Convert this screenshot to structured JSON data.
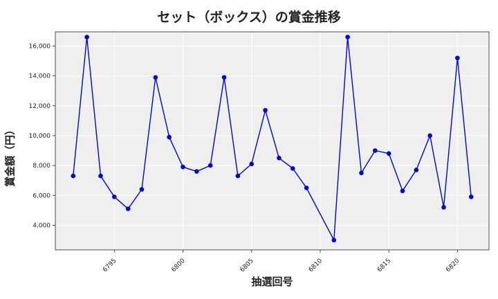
{
  "chart_data": {
    "type": "line",
    "title": "セット（ボックス）の賞金推移",
    "xlabel": "抽選回号",
    "ylabel": "賞金額（円）",
    "xlim": [
      6790.7,
      6822.3
    ],
    "ylim": [
      2350,
      16950
    ],
    "x_ticks": [
      6795,
      6800,
      6805,
      6810,
      6815,
      6820
    ],
    "y_ticks": [
      4000,
      6000,
      8000,
      10000,
      12000,
      14000,
      16000
    ],
    "y_tick_labels": [
      "4,000",
      "6,000",
      "8,000",
      "10,000",
      "12,000",
      "14,000",
      "16,000"
    ],
    "grid": true,
    "series": [
      {
        "color": "#0000dd",
        "x": [
          6792,
          6793,
          6794,
          6795,
          6796,
          6797,
          6798,
          6799,
          6800,
          6801,
          6802,
          6803,
          6804,
          6805,
          6806,
          6807,
          6808,
          6809,
          6811,
          6812,
          6813,
          6814,
          6815,
          6816,
          6817,
          6818,
          6819,
          6820,
          6821
        ],
        "values": [
          7300,
          16600,
          7300,
          5900,
          5100,
          6400,
          13900,
          9900,
          7900,
          7600,
          8000,
          13900,
          7300,
          8100,
          11700,
          8500,
          7800,
          6500,
          3000,
          16600,
          7500,
          9000,
          8800,
          6300,
          7700,
          10000,
          5200,
          15200,
          5900
        ]
      }
    ]
  }
}
